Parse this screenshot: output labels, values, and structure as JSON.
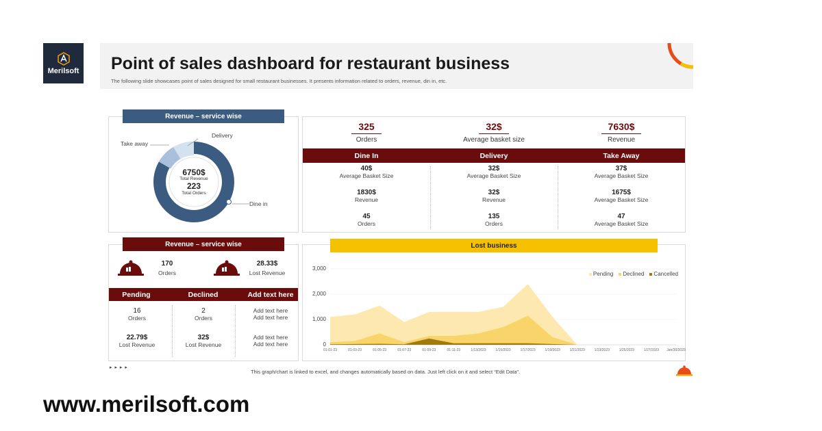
{
  "logo": {
    "text": "Merilsoft"
  },
  "header": {
    "title": "Point of sales dashboard for restaurant business",
    "subtitle": "The following slide showcases point of sales designed for small restaurant businesses. It presents information related to orders, revenue, din in, etc."
  },
  "donut_panel": {
    "ribbon": "Revenue – service wise",
    "center_value": "6750$",
    "center_label": "Total Revenue",
    "center_orders": "223",
    "center_orders_label": "Total Orders",
    "labels": {
      "take_away": "Take away",
      "delivery": "Delivery",
      "dine_in": "Dine in"
    },
    "colors": {
      "dine_in": "#3b5b80",
      "take_away": "#a8c0dc",
      "delivery": "#d4e2f0"
    }
  },
  "kpis": [
    {
      "value": "325",
      "label": "Orders"
    },
    {
      "value": "32$",
      "label": "Average basket size"
    },
    {
      "value": "7630$",
      "label": "Revenue"
    }
  ],
  "service_table": {
    "headers": [
      "Dine In",
      "Delivery",
      "Take Away"
    ],
    "rows": [
      [
        {
          "v": "40$",
          "l": "Average  Basket Size"
        },
        {
          "v": "32$",
          "l": "Average  Basket Size"
        },
        {
          "v": "37$",
          "l": "Average  Basket Size"
        }
      ],
      [
        {
          "v": "1830$",
          "l": "Revenue"
        },
        {
          "v": "32$",
          "l": "Revenue"
        },
        {
          "v": "1675$",
          "l": "Average  Basket Size"
        }
      ],
      [
        {
          "v": "45",
          "l": "Orders"
        },
        {
          "v": "135",
          "l": "Orders"
        },
        {
          "v": "47",
          "l": "Average  Basket Size"
        }
      ]
    ]
  },
  "orders_panel": {
    "ribbon": "Revenue – service wise",
    "stat1": {
      "value": "170",
      "label": "Orders"
    },
    "stat2": {
      "value": "28.33$",
      "label": "Lost Revenue"
    },
    "headers": [
      "Pending",
      "Declined",
      "Add text here"
    ],
    "rows": [
      [
        {
          "v": "16",
          "l": "Orders"
        },
        {
          "v": "2",
          "l": "Orders"
        },
        {
          "v": "Add text here",
          "l": "Add text here"
        }
      ],
      [
        {
          "v": "22.79$",
          "l": "Lost Revenue"
        },
        {
          "v": "32$",
          "l": "Lost Revenue"
        },
        {
          "v": "Add text here",
          "l": "Add text here"
        }
      ]
    ]
  },
  "lost_business": {
    "ribbon": "Lost business"
  },
  "chart_data": {
    "type": "area",
    "title": "Lost business",
    "x": [
      "01-01-23",
      "01-03-23",
      "01-05-23",
      "01-07-23",
      "01-09-23",
      "01-11-23",
      "1/13/2023",
      "1/15/2023",
      "1/17/2023",
      "1/19/2023",
      "1/21/2023",
      "1/23/2023",
      "1/25/2023",
      "1/27/2023",
      "Jan/30/2023"
    ],
    "ylim": [
      0,
      3000
    ],
    "yticks": [
      "3,000",
      "2,000",
      "1,000",
      "0"
    ],
    "series": [
      {
        "name": "Pending",
        "color": "#fde9b0",
        "values": [
          1100,
          1200,
          1550,
          900,
          1300,
          1300,
          1300,
          1500,
          2400,
          1100,
          0,
          0,
          0,
          0,
          0
        ]
      },
      {
        "name": "Declined",
        "color": "#f8d46b",
        "values": [
          100,
          150,
          450,
          100,
          350,
          350,
          450,
          700,
          1150,
          300,
          0,
          0,
          0,
          0,
          0
        ]
      },
      {
        "name": "Cancelled",
        "color": "#a07a10",
        "values": [
          20,
          30,
          40,
          20,
          250,
          60,
          60,
          60,
          60,
          30,
          0,
          0,
          0,
          0,
          0
        ]
      }
    ],
    "legend": "top-right",
    "grid": true
  },
  "footer": {
    "note": "This graph/chart is linked to excel, and changes automatically based on data. Just left click on it and select “Edit Data”.",
    "arrows": "▸ ▸ ▸ ▸"
  },
  "website": "www.merilsoft.com"
}
